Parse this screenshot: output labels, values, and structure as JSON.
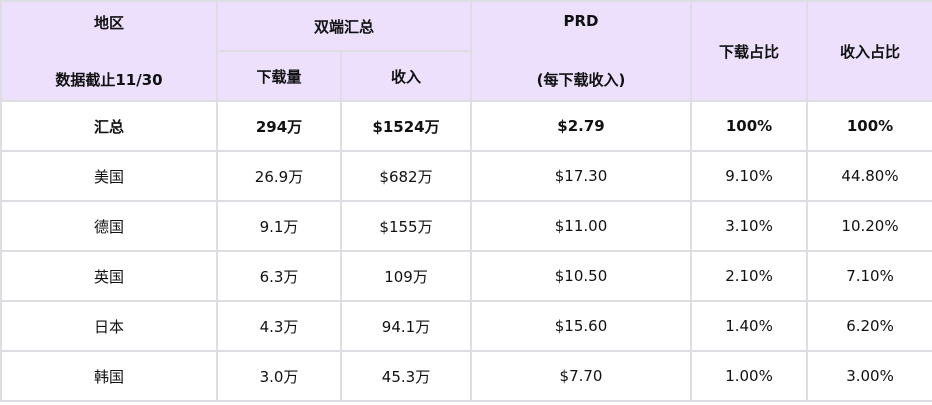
{
  "header": {
    "region": "地区",
    "cutoff": "数据截止11/30",
    "both": "双端汇总",
    "downloads": "下载量",
    "revenue": "收入",
    "prd": "PRD",
    "prd_sub": "(每下载收入)",
    "download_share": "下载占比",
    "revenue_share": "收入占比"
  },
  "colors": {
    "header_bg": "#ece0fc",
    "border": "#dedde3"
  },
  "rows": [
    {
      "region": "汇总",
      "downloads": "294万",
      "revenue": "$1524万",
      "prd": "$2.79",
      "download_share": "100%",
      "revenue_share": "100%"
    },
    {
      "region": "美国",
      "downloads": "26.9万",
      "revenue": "$682万",
      "prd": "$17.30",
      "download_share": "9.10%",
      "revenue_share": "44.80%"
    },
    {
      "region": "德国",
      "downloads": "9.1万",
      "revenue": "$155万",
      "prd": "$11.00",
      "download_share": "3.10%",
      "revenue_share": "10.20%"
    },
    {
      "region": "英国",
      "downloads": "6.3万",
      "revenue": "109万",
      "prd": "$10.50",
      "download_share": "2.10%",
      "revenue_share": "7.10%"
    },
    {
      "region": "日本",
      "downloads": "4.3万",
      "revenue": "94.1万",
      "prd": "$15.60",
      "download_share": "1.40%",
      "revenue_share": "6.20%"
    },
    {
      "region": "韩国",
      "downloads": "3.0万",
      "revenue": "45.3万",
      "prd": "$7.70",
      "download_share": "1.00%",
      "revenue_share": "3.00%"
    }
  ]
}
